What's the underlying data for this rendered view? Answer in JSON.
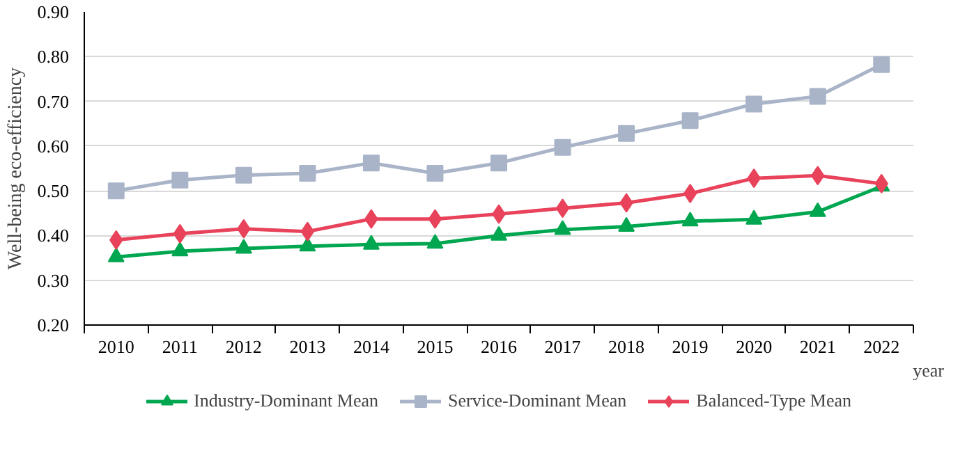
{
  "chart_data": {
    "type": "line",
    "xlabel": "year",
    "ylabel": "Well-being eco-efficiency",
    "categories": [
      "2010",
      "2011",
      "2012",
      "2013",
      "2014",
      "2015",
      "2016",
      "2017",
      "2018",
      "2019",
      "2020",
      "2021",
      "2022"
    ],
    "series": [
      {
        "name": "Industry-Dominant Mean",
        "color": "#00a650",
        "marker": "triangle",
        "values": [
          0.352,
          0.365,
          0.371,
          0.376,
          0.38,
          0.382,
          0.4,
          0.413,
          0.42,
          0.432,
          0.436,
          0.453,
          0.51
        ]
      },
      {
        "name": "Service-Dominant Mean",
        "color": "#a9b4c8",
        "marker": "square",
        "values": [
          0.5,
          0.524,
          0.535,
          0.539,
          0.562,
          0.539,
          0.562,
          0.597,
          0.628,
          0.657,
          0.694,
          0.711,
          0.782
        ]
      },
      {
        "name": "Balanced-Type Mean",
        "color": "#e8435a",
        "marker": "diamond",
        "values": [
          0.39,
          0.404,
          0.415,
          0.409,
          0.437,
          0.437,
          0.448,
          0.461,
          0.473,
          0.494,
          0.528,
          0.534,
          0.516
        ]
      }
    ],
    "ylim": [
      0.2,
      0.9
    ],
    "yticks": [
      {
        "value": 0.2,
        "label": "0.20"
      },
      {
        "value": 0.3,
        "label": "0.30"
      },
      {
        "value": 0.4,
        "label": "0.40"
      },
      {
        "value": 0.5,
        "label": "0.50"
      },
      {
        "value": 0.6,
        "label": "0.60"
      },
      {
        "value": 0.7,
        "label": "0.70"
      },
      {
        "value": 0.8,
        "label": "0.80"
      },
      {
        "value": 0.9,
        "label": "0.90"
      }
    ],
    "grid": "y",
    "legend": "bottom",
    "line_style": "solid"
  }
}
